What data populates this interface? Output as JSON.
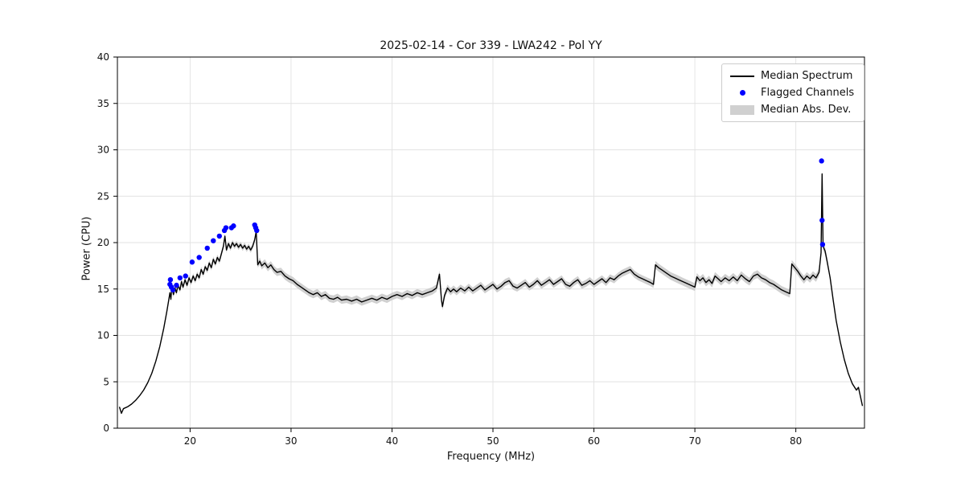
{
  "figure": {
    "title": "2025-02-14 - Cor 339 - LWA242 - Pol YY",
    "xlabel": "Frequency (MHz)",
    "ylabel": "Power (CPU)"
  },
  "legend": {
    "position": "upper right",
    "entries": [
      {
        "label": "Median Spectrum",
        "type": "line",
        "color": "#000000"
      },
      {
        "label": "Flagged Channels",
        "type": "dot",
        "color": "#0000ff"
      },
      {
        "label": "Median Abs. Dev.",
        "type": "patch",
        "color": "#d0d0d0"
      }
    ]
  },
  "chart_data": {
    "type": "line",
    "title": "2025-02-14 - Cor 339 - LWA242 - Pol YY",
    "xlabel": "Frequency (MHz)",
    "ylabel": "Power (CPU)",
    "xlim": [
      12.8,
      86.8
    ],
    "ylim": [
      0,
      40
    ],
    "xticks": [
      20,
      30,
      40,
      50,
      60,
      70,
      80
    ],
    "yticks": [
      0,
      5,
      10,
      15,
      20,
      25,
      30,
      35,
      40
    ],
    "grid": true,
    "colors": {
      "median": "#000000",
      "flagged": "#0000ff",
      "band": "#c8c8c8",
      "gridline": "#e2e2e2"
    },
    "series": [
      {
        "name": "Median Spectrum",
        "type": "line",
        "color": "#000000",
        "points": [
          [
            13.0,
            2.3
          ],
          [
            13.2,
            1.6
          ],
          [
            13.4,
            2.1
          ],
          [
            13.8,
            2.3
          ],
          [
            14.2,
            2.6
          ],
          [
            14.6,
            3.0
          ],
          [
            15.0,
            3.5
          ],
          [
            15.4,
            4.1
          ],
          [
            15.8,
            4.9
          ],
          [
            16.2,
            5.9
          ],
          [
            16.6,
            7.2
          ],
          [
            17.0,
            8.8
          ],
          [
            17.4,
            10.8
          ],
          [
            17.7,
            12.6
          ],
          [
            17.9,
            13.9
          ],
          [
            18.0,
            14.6
          ],
          [
            18.1,
            13.9
          ],
          [
            18.2,
            15.3
          ],
          [
            18.35,
            14.4
          ],
          [
            18.5,
            15.1
          ],
          [
            18.65,
            14.6
          ],
          [
            18.8,
            15.4
          ],
          [
            19.0,
            14.9
          ],
          [
            19.15,
            15.8
          ],
          [
            19.3,
            15.2
          ],
          [
            19.5,
            16.0
          ],
          [
            19.7,
            15.4
          ],
          [
            19.9,
            16.2
          ],
          [
            20.1,
            15.7
          ],
          [
            20.3,
            16.4
          ],
          [
            20.5,
            15.9
          ],
          [
            20.7,
            16.6
          ],
          [
            20.9,
            16.2
          ],
          [
            21.1,
            17.1
          ],
          [
            21.3,
            16.6
          ],
          [
            21.5,
            17.4
          ],
          [
            21.7,
            17.0
          ],
          [
            21.9,
            17.8
          ],
          [
            22.1,
            17.3
          ],
          [
            22.3,
            18.2
          ],
          [
            22.5,
            17.7
          ],
          [
            22.7,
            18.4
          ],
          [
            22.9,
            18.0
          ],
          [
            23.1,
            18.8
          ],
          [
            23.3,
            19.6
          ],
          [
            23.45,
            20.7
          ],
          [
            23.6,
            19.2
          ],
          [
            23.8,
            19.9
          ],
          [
            24.0,
            19.4
          ],
          [
            24.2,
            20.0
          ],
          [
            24.4,
            19.6
          ],
          [
            24.6,
            19.9
          ],
          [
            24.8,
            19.5
          ],
          [
            25.0,
            19.8
          ],
          [
            25.2,
            19.4
          ],
          [
            25.4,
            19.7
          ],
          [
            25.6,
            19.3
          ],
          [
            25.8,
            19.6
          ],
          [
            26.0,
            19.2
          ],
          [
            26.2,
            19.6
          ],
          [
            26.4,
            20.3
          ],
          [
            26.55,
            21.2
          ],
          [
            26.7,
            17.6
          ],
          [
            26.9,
            18.0
          ],
          [
            27.1,
            17.5
          ],
          [
            27.4,
            17.8
          ],
          [
            27.7,
            17.3
          ],
          [
            28.0,
            17.6
          ],
          [
            28.3,
            17.1
          ],
          [
            28.6,
            16.8
          ],
          [
            29.0,
            16.9
          ],
          [
            29.4,
            16.4
          ],
          [
            29.8,
            16.1
          ],
          [
            30.2,
            15.9
          ],
          [
            30.6,
            15.5
          ],
          [
            31.0,
            15.2
          ],
          [
            31.4,
            14.9
          ],
          [
            31.8,
            14.6
          ],
          [
            32.2,
            14.4
          ],
          [
            32.6,
            14.6
          ],
          [
            33.0,
            14.2
          ],
          [
            33.4,
            14.4
          ],
          [
            33.8,
            14.0
          ],
          [
            34.2,
            13.9
          ],
          [
            34.6,
            14.1
          ],
          [
            35.0,
            13.8
          ],
          [
            35.5,
            13.9
          ],
          [
            36.0,
            13.7
          ],
          [
            36.5,
            13.9
          ],
          [
            37.0,
            13.6
          ],
          [
            37.5,
            13.8
          ],
          [
            38.0,
            14.0
          ],
          [
            38.5,
            13.8
          ],
          [
            39.0,
            14.1
          ],
          [
            39.5,
            13.9
          ],
          [
            40.0,
            14.2
          ],
          [
            40.5,
            14.4
          ],
          [
            41.0,
            14.2
          ],
          [
            41.5,
            14.5
          ],
          [
            42.0,
            14.3
          ],
          [
            42.5,
            14.6
          ],
          [
            43.0,
            14.4
          ],
          [
            43.5,
            14.6
          ],
          [
            44.0,
            14.8
          ],
          [
            44.4,
            15.1
          ],
          [
            44.7,
            16.6
          ],
          [
            44.9,
            13.8
          ],
          [
            45.0,
            13.1
          ],
          [
            45.2,
            14.3
          ],
          [
            45.5,
            15.1
          ],
          [
            45.8,
            14.7
          ],
          [
            46.1,
            15.0
          ],
          [
            46.4,
            14.7
          ],
          [
            46.8,
            15.1
          ],
          [
            47.2,
            14.8
          ],
          [
            47.6,
            15.2
          ],
          [
            48.0,
            14.8
          ],
          [
            48.4,
            15.1
          ],
          [
            48.8,
            15.4
          ],
          [
            49.2,
            14.9
          ],
          [
            49.6,
            15.2
          ],
          [
            50.0,
            15.5
          ],
          [
            50.4,
            15.0
          ],
          [
            50.8,
            15.3
          ],
          [
            51.2,
            15.7
          ],
          [
            51.6,
            15.9
          ],
          [
            52.0,
            15.3
          ],
          [
            52.4,
            15.1
          ],
          [
            52.8,
            15.4
          ],
          [
            53.2,
            15.7
          ],
          [
            53.6,
            15.2
          ],
          [
            54.0,
            15.5
          ],
          [
            54.4,
            15.9
          ],
          [
            54.8,
            15.4
          ],
          [
            55.2,
            15.7
          ],
          [
            55.6,
            16.0
          ],
          [
            56.0,
            15.5
          ],
          [
            56.4,
            15.8
          ],
          [
            56.8,
            16.1
          ],
          [
            57.2,
            15.5
          ],
          [
            57.6,
            15.3
          ],
          [
            58.0,
            15.7
          ],
          [
            58.4,
            16.0
          ],
          [
            58.8,
            15.4
          ],
          [
            59.2,
            15.6
          ],
          [
            59.6,
            15.9
          ],
          [
            60.0,
            15.5
          ],
          [
            60.4,
            15.8
          ],
          [
            60.8,
            16.1
          ],
          [
            61.2,
            15.7
          ],
          [
            61.6,
            16.2
          ],
          [
            62.0,
            16.0
          ],
          [
            62.4,
            16.4
          ],
          [
            62.8,
            16.7
          ],
          [
            63.2,
            16.9
          ],
          [
            63.6,
            17.1
          ],
          [
            64.0,
            16.6
          ],
          [
            64.4,
            16.3
          ],
          [
            64.8,
            16.1
          ],
          [
            65.2,
            15.9
          ],
          [
            65.6,
            15.7
          ],
          [
            65.9,
            15.5
          ],
          [
            66.1,
            17.6
          ],
          [
            66.4,
            17.3
          ],
          [
            66.8,
            17.0
          ],
          [
            67.2,
            16.7
          ],
          [
            67.6,
            16.4
          ],
          [
            68.0,
            16.2
          ],
          [
            68.4,
            16.0
          ],
          [
            68.8,
            15.8
          ],
          [
            69.2,
            15.6
          ],
          [
            69.6,
            15.4
          ],
          [
            70.0,
            15.2
          ],
          [
            70.2,
            16.3
          ],
          [
            70.5,
            15.9
          ],
          [
            70.8,
            16.2
          ],
          [
            71.1,
            15.7
          ],
          [
            71.4,
            16.0
          ],
          [
            71.7,
            15.6
          ],
          [
            72.0,
            16.4
          ],
          [
            72.3,
            16.1
          ],
          [
            72.6,
            15.8
          ],
          [
            73.0,
            16.2
          ],
          [
            73.4,
            15.9
          ],
          [
            73.8,
            16.3
          ],
          [
            74.2,
            15.9
          ],
          [
            74.6,
            16.5
          ],
          [
            75.0,
            16.1
          ],
          [
            75.4,
            15.8
          ],
          [
            75.8,
            16.4
          ],
          [
            76.2,
            16.6
          ],
          [
            76.6,
            16.2
          ],
          [
            77.0,
            16.0
          ],
          [
            77.4,
            15.7
          ],
          [
            77.8,
            15.5
          ],
          [
            78.2,
            15.2
          ],
          [
            78.6,
            14.9
          ],
          [
            79.0,
            14.7
          ],
          [
            79.4,
            14.5
          ],
          [
            79.6,
            17.7
          ],
          [
            79.9,
            17.3
          ],
          [
            80.2,
            16.9
          ],
          [
            80.5,
            16.4
          ],
          [
            80.8,
            16.0
          ],
          [
            81.1,
            16.4
          ],
          [
            81.4,
            16.1
          ],
          [
            81.7,
            16.5
          ],
          [
            82.0,
            16.2
          ],
          [
            82.3,
            16.8
          ],
          [
            82.5,
            18.9
          ],
          [
            82.6,
            27.4
          ],
          [
            82.7,
            19.6
          ],
          [
            82.9,
            19.1
          ],
          [
            83.1,
            18.0
          ],
          [
            83.4,
            16.2
          ],
          [
            83.7,
            13.8
          ],
          [
            84.0,
            11.6
          ],
          [
            84.4,
            9.3
          ],
          [
            84.8,
            7.4
          ],
          [
            85.2,
            5.9
          ],
          [
            85.6,
            4.8
          ],
          [
            86.0,
            4.1
          ],
          [
            86.2,
            4.4
          ],
          [
            86.4,
            3.4
          ],
          [
            86.6,
            2.4
          ]
        ]
      },
      {
        "name": "Flagged Channels",
        "type": "scatter",
        "color": "#0000ff",
        "points": [
          [
            18.0,
            15.5
          ],
          [
            18.05,
            16.0
          ],
          [
            18.15,
            15.2
          ],
          [
            18.3,
            14.9
          ],
          [
            18.65,
            15.4
          ],
          [
            19.0,
            16.2
          ],
          [
            19.55,
            16.4
          ],
          [
            20.2,
            17.9
          ],
          [
            20.9,
            18.4
          ],
          [
            21.7,
            19.4
          ],
          [
            22.3,
            20.2
          ],
          [
            22.9,
            20.7
          ],
          [
            23.4,
            21.3
          ],
          [
            23.55,
            21.6
          ],
          [
            24.1,
            21.6
          ],
          [
            24.3,
            21.8
          ],
          [
            26.4,
            21.9
          ],
          [
            26.5,
            21.6
          ],
          [
            26.6,
            21.3
          ],
          [
            82.55,
            28.8
          ],
          [
            82.6,
            22.4
          ],
          [
            82.65,
            19.8
          ]
        ]
      },
      {
        "name": "Median Abs. Dev.",
        "type": "band",
        "color": "#c8c8c8",
        "half_width_segments": [
          [
            12.8,
            17.6,
            0.07
          ],
          [
            17.6,
            26.7,
            0.3
          ],
          [
            26.7,
            44.6,
            0.4
          ],
          [
            44.6,
            66.0,
            0.38
          ],
          [
            66.0,
            83.3,
            0.42
          ],
          [
            83.3,
            86.8,
            0.12
          ]
        ]
      }
    ]
  }
}
